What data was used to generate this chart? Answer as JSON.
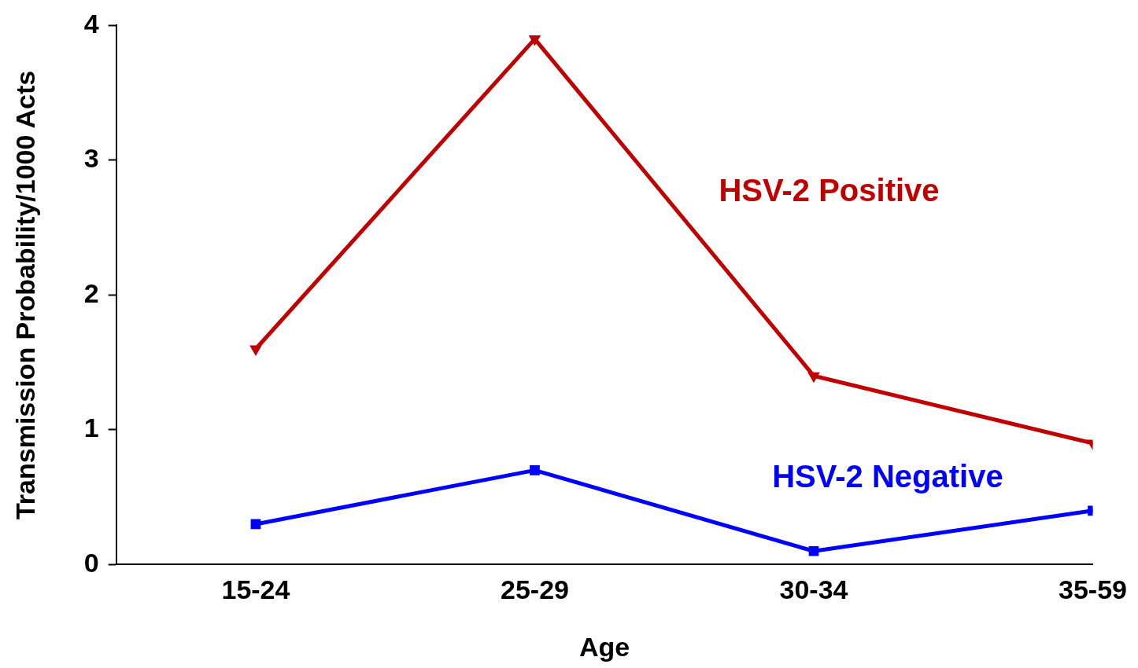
{
  "chart_data": {
    "type": "line",
    "xlabel": "Age",
    "ylabel": "Transmission Probability/1000 Acts",
    "categories": [
      "15-24",
      "25-29",
      "30-34",
      "35-59"
    ],
    "series": [
      {
        "name": "HSV-2 Positive",
        "color": "#c00000",
        "marker": "triangle",
        "values": [
          1.6,
          3.9,
          1.4,
          0.9
        ]
      },
      {
        "name": "HSV-2 Negative",
        "color": "#0000ff",
        "marker": "square",
        "values": [
          0.3,
          0.7,
          0.1,
          0.4
        ]
      }
    ],
    "ylim": [
      0,
      4
    ],
    "yticks": [
      0,
      1,
      2,
      3,
      4
    ],
    "grid": false,
    "legend": false,
    "line_style": "solid"
  }
}
